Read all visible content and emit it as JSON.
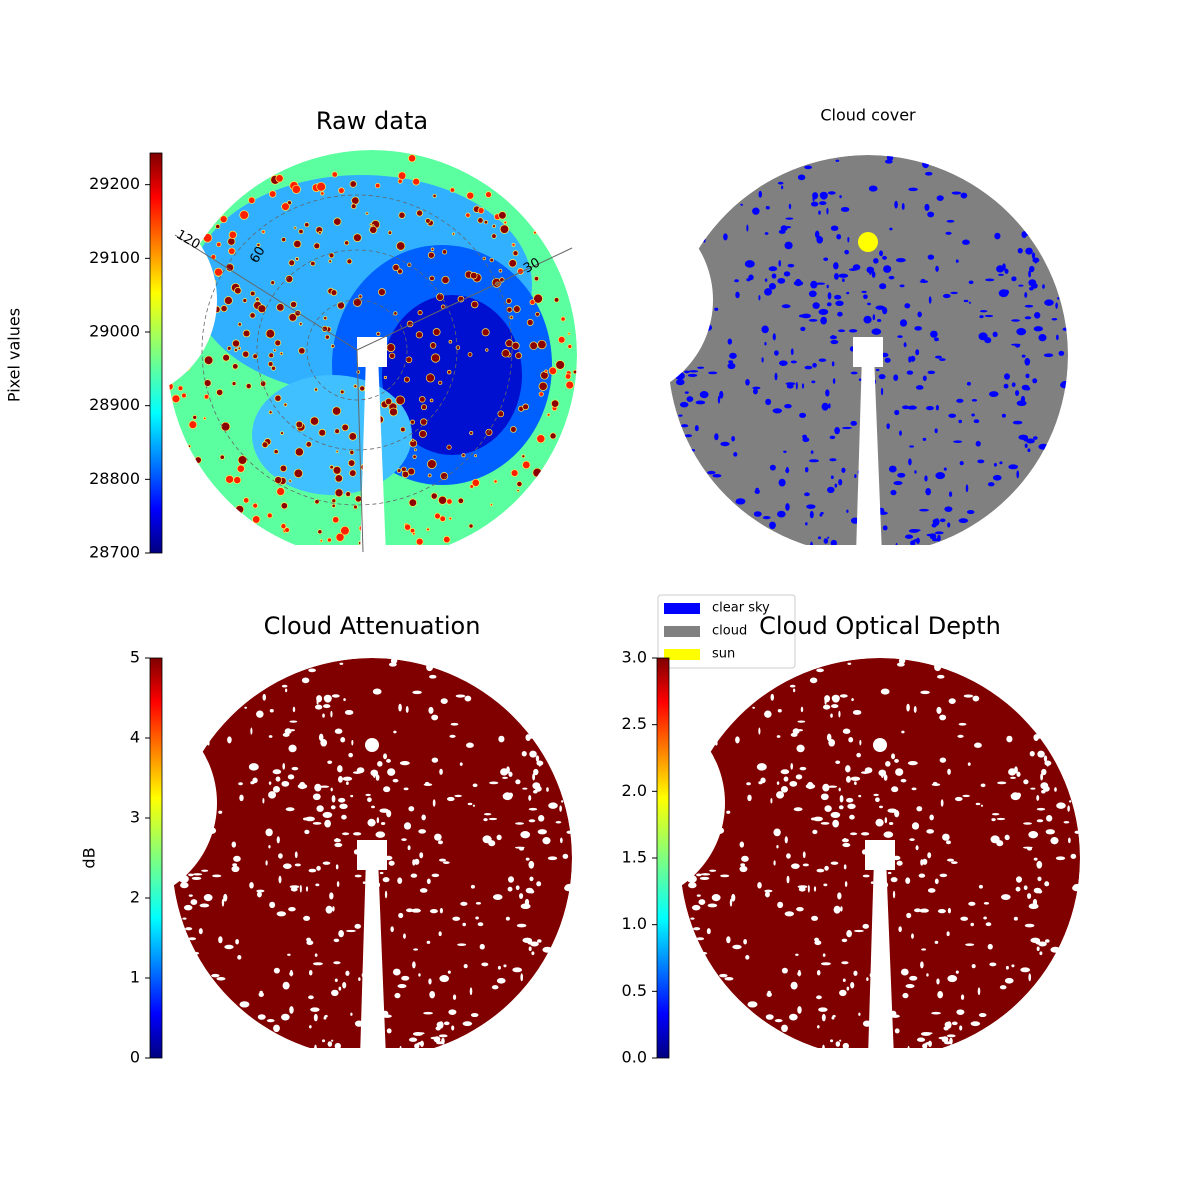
{
  "chart_data": [
    {
      "type": "image",
      "title": "Raw data",
      "colorbar_label": "Pixel values",
      "ylim": [
        28700,
        29243
      ],
      "yticks": [
        28700,
        28800,
        28900,
        29000,
        29100,
        29200
      ],
      "polar_labels": [
        "120",
        "60",
        "30"
      ],
      "colormap": "jet"
    },
    {
      "type": "image",
      "title": "Cloud cover",
      "series": [
        {
          "name": "clear sky",
          "color": "#0000ff"
        },
        {
          "name": "cloud",
          "color": "#808080"
        },
        {
          "name": "sun",
          "color": "#ffff00"
        }
      ]
    },
    {
      "type": "image",
      "title": "Cloud Attenuation",
      "colorbar_label": "dB",
      "ylim": [
        0,
        5
      ],
      "yticks": [
        0,
        1,
        2,
        3,
        4,
        5
      ],
      "colormap": "jet"
    },
    {
      "type": "image",
      "title": "Cloud Optical Depth",
      "ylim": [
        0,
        3
      ],
      "yticks": [
        {
          "value": 0,
          "label": "0.0"
        },
        0.5,
        {
          "value": 1,
          "label": "1.0"
        },
        1.5,
        {
          "value": 2,
          "label": "2.0"
        },
        2.5,
        {
          "value": 3,
          "label": "3.0"
        }
      ],
      "colormap": "jet"
    }
  ]
}
